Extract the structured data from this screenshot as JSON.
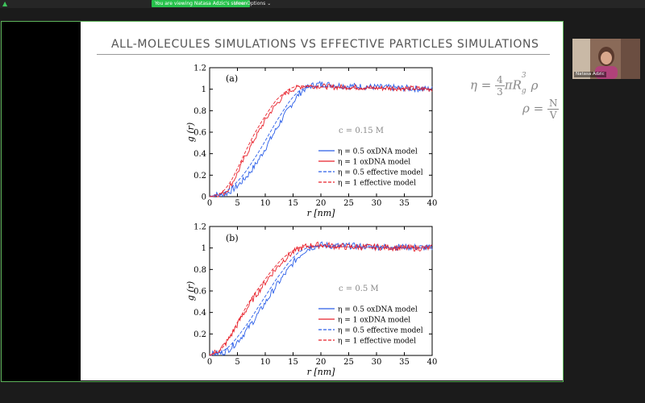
{
  "top_bar": {
    "viewing_label": "You are viewing Natasa Adzic's screen",
    "view_options_label": "View Options ⌄"
  },
  "slide": {
    "title": "ALL-MOLECULES SIMULATIONS VS EFFECTIVE PARTICLES SIMULATIONS",
    "eq1": {
      "lhs": "η =",
      "num": "4",
      "den": "3",
      "rhs": "πR",
      "sub": "g",
      "sup": "3",
      "tail": "ρ"
    },
    "eq2": {
      "lhs": "ρ =",
      "num": "N",
      "den": "V"
    }
  },
  "participant": {
    "name": "Natasa Adzic"
  },
  "colors": {
    "blue": "#2b5ee8",
    "red": "#e8202a",
    "accent_green": "#27c24c"
  },
  "chart_data": [
    {
      "type": "line",
      "panel_label": "(a)",
      "annotation": "c = 0.15 M",
      "xlabel": "r [nm]",
      "ylabel": "g (r)",
      "xlim": [
        0,
        40
      ],
      "ylim": [
        0,
        1.2
      ],
      "xticks": [
        0,
        5,
        10,
        15,
        20,
        25,
        30,
        35,
        40
      ],
      "yticks": [
        0,
        0.2,
        0.4,
        0.6,
        0.8,
        1,
        1.2
      ],
      "legend_position": "center-right",
      "series": [
        {
          "name": "η = 0.5   oxDNA model",
          "color": "#2b5ee8",
          "dash": false,
          "noise": 0.03,
          "x": [
            0,
            1,
            2,
            3,
            4,
            5,
            6,
            7,
            8,
            9,
            10,
            11,
            12,
            13,
            14,
            15,
            16,
            17,
            18,
            20,
            22,
            25,
            30,
            35,
            40
          ],
          "y": [
            0,
            0.02,
            0.01,
            0.03,
            0.06,
            0.1,
            0.15,
            0.21,
            0.28,
            0.36,
            0.45,
            0.54,
            0.63,
            0.72,
            0.8,
            0.88,
            0.95,
            1.0,
            1.03,
            1.05,
            1.04,
            1.03,
            1.02,
            1.01,
            1.0
          ]
        },
        {
          "name": "η = 1     oxDNA model",
          "color": "#e8202a",
          "dash": false,
          "noise": 0.025,
          "x": [
            0,
            1,
            2,
            3,
            4,
            5,
            6,
            7,
            8,
            9,
            10,
            11,
            12,
            13,
            14,
            15,
            16,
            17,
            18,
            20,
            22,
            25,
            30,
            35,
            40
          ],
          "y": [
            0,
            0.01,
            0.02,
            0.05,
            0.12,
            0.22,
            0.33,
            0.43,
            0.53,
            0.62,
            0.71,
            0.79,
            0.86,
            0.92,
            0.97,
            1.0,
            1.02,
            1.03,
            1.03,
            1.03,
            1.02,
            1.02,
            1.01,
            1.01,
            1.0
          ]
        },
        {
          "name": "η = 0.5   effective model",
          "color": "#2b5ee8",
          "dash": true,
          "noise": 0,
          "x": [
            0,
            2,
            3,
            4,
            5,
            6,
            7,
            8,
            9,
            10,
            11,
            12,
            13,
            14,
            15,
            16,
            17,
            18,
            20,
            22,
            25,
            30,
            35,
            40
          ],
          "y": [
            0,
            0.02,
            0.05,
            0.09,
            0.14,
            0.2,
            0.27,
            0.35,
            0.43,
            0.52,
            0.61,
            0.7,
            0.78,
            0.86,
            0.93,
            0.98,
            1.01,
            1.02,
            1.03,
            1.02,
            1.01,
            1.01,
            1.0,
            1.0
          ]
        },
        {
          "name": "η = 1     effective model",
          "color": "#e8202a",
          "dash": true,
          "noise": 0,
          "x": [
            0,
            2,
            3,
            4,
            5,
            6,
            7,
            8,
            9,
            10,
            11,
            12,
            13,
            14,
            15,
            16,
            17,
            18,
            20,
            22,
            25,
            30,
            35,
            40
          ],
          "y": [
            0,
            0.03,
            0.08,
            0.16,
            0.26,
            0.37,
            0.48,
            0.58,
            0.67,
            0.75,
            0.83,
            0.9,
            0.95,
            0.99,
            1.02,
            1.03,
            1.03,
            1.03,
            1.02,
            1.02,
            1.01,
            1.01,
            1.0,
            1.0
          ]
        }
      ]
    },
    {
      "type": "line",
      "panel_label": "(b)",
      "annotation": "c = 0.5 M",
      "xlabel": "r [nm]",
      "ylabel": "g (r)",
      "xlim": [
        0,
        40
      ],
      "ylim": [
        0,
        1.2
      ],
      "xticks": [
        0,
        5,
        10,
        15,
        20,
        25,
        30,
        35,
        40
      ],
      "yticks": [
        0,
        0.2,
        0.4,
        0.6,
        0.8,
        1,
        1.2
      ],
      "legend_position": "bottom-right",
      "series": [
        {
          "name": "η = 0.5   oxDNA model",
          "color": "#2b5ee8",
          "dash": false,
          "noise": 0.03,
          "x": [
            0,
            1,
            2,
            3,
            4,
            5,
            6,
            7,
            8,
            9,
            10,
            11,
            12,
            13,
            14,
            15,
            16,
            17,
            18,
            20,
            22,
            25,
            30,
            35,
            40
          ],
          "y": [
            0,
            0.02,
            0.02,
            0.04,
            0.08,
            0.13,
            0.19,
            0.26,
            0.33,
            0.41,
            0.49,
            0.57,
            0.65,
            0.72,
            0.79,
            0.86,
            0.92,
            0.97,
            1.0,
            1.03,
            1.02,
            1.02,
            1.01,
            1.01,
            1.0
          ]
        },
        {
          "name": "η = 1     oxDNA model",
          "color": "#e8202a",
          "dash": false,
          "noise": 0.03,
          "x": [
            0,
            1,
            2,
            3,
            4,
            5,
            6,
            7,
            8,
            9,
            10,
            11,
            12,
            13,
            14,
            15,
            16,
            17,
            18,
            20,
            22,
            25,
            30,
            35,
            40
          ],
          "y": [
            0,
            0.03,
            0.06,
            0.12,
            0.2,
            0.29,
            0.38,
            0.46,
            0.54,
            0.61,
            0.68,
            0.75,
            0.81,
            0.87,
            0.92,
            0.96,
            0.99,
            1.01,
            1.02,
            1.03,
            1.02,
            1.01,
            1.01,
            1.0,
            1.0
          ]
        },
        {
          "name": "η = 0.5   effective model",
          "color": "#2b5ee8",
          "dash": true,
          "noise": 0,
          "x": [
            0,
            2,
            3,
            4,
            5,
            6,
            7,
            8,
            9,
            10,
            11,
            12,
            13,
            14,
            15,
            16,
            17,
            18,
            20,
            22,
            25,
            30,
            35,
            40
          ],
          "y": [
            0,
            0.03,
            0.06,
            0.11,
            0.17,
            0.24,
            0.31,
            0.39,
            0.47,
            0.55,
            0.63,
            0.71,
            0.78,
            0.85,
            0.91,
            0.96,
            0.99,
            1.01,
            1.02,
            1.02,
            1.01,
            1.01,
            1.0,
            1.0
          ]
        },
        {
          "name": "η = 1     effective model",
          "color": "#e8202a",
          "dash": true,
          "noise": 0,
          "x": [
            0,
            2,
            3,
            4,
            5,
            6,
            7,
            8,
            9,
            10,
            11,
            12,
            13,
            14,
            15,
            16,
            17,
            18,
            20,
            22,
            25,
            30,
            35,
            40
          ],
          "y": [
            0,
            0.05,
            0.12,
            0.21,
            0.31,
            0.4,
            0.49,
            0.57,
            0.64,
            0.71,
            0.78,
            0.84,
            0.9,
            0.94,
            0.98,
            1.0,
            1.01,
            1.02,
            1.02,
            1.01,
            1.01,
            1.0,
            1.0,
            1.0
          ]
        }
      ]
    }
  ]
}
